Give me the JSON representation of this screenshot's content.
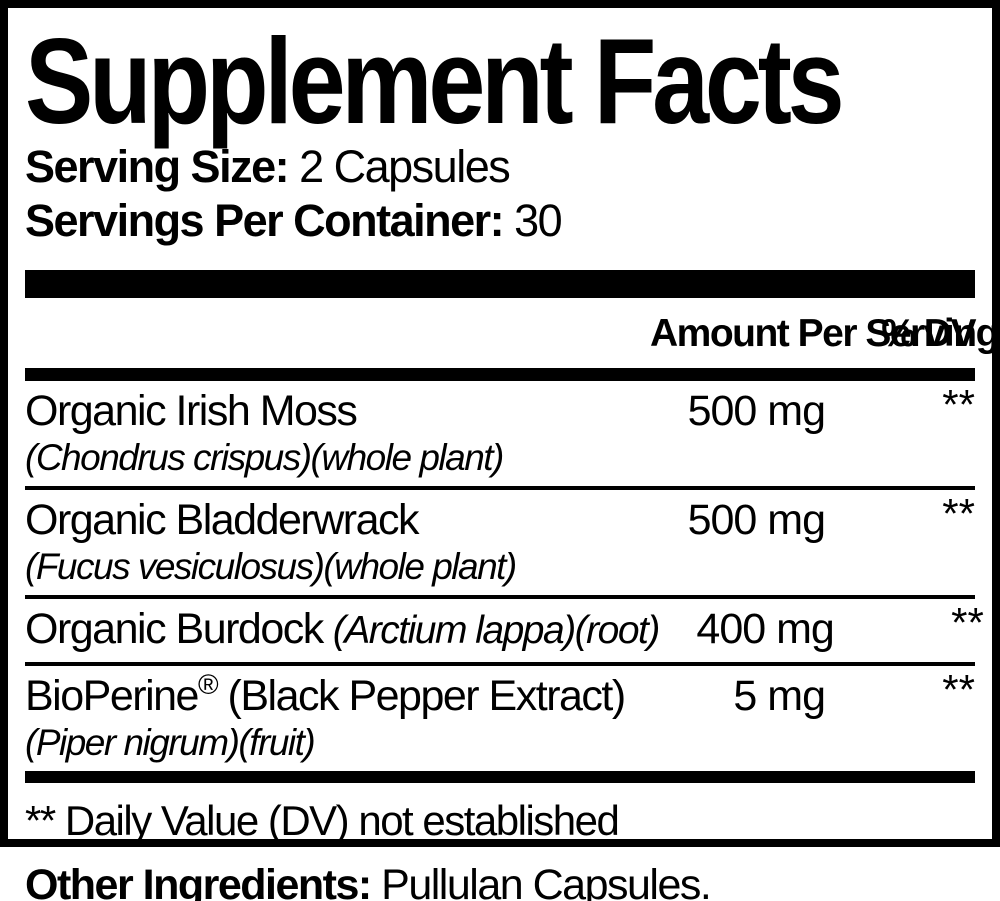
{
  "label": {
    "title": "Supplement Facts",
    "serving_size_label": "Serving Size:",
    "serving_size_value": " 2 Capsules",
    "servings_per_container_label": "Servings Per Container:",
    "servings_per_container_value": " 30",
    "header": {
      "amount": "Amount Per Serving",
      "dv": "% DV"
    },
    "rows": [
      {
        "name": "Organic Irish Moss",
        "latin": "(Chondrus crispus)(whole plant)",
        "amount": "500 mg",
        "dv": "**"
      },
      {
        "name": "Organic Bladderwrack",
        "latin": "(Fucus vesiculosus)(whole plant)",
        "amount": "500 mg",
        "dv": "**"
      },
      {
        "name": "Organic Burdock",
        "latin_inline": "(Arctium lappa)(root)",
        "amount": "400 mg",
        "dv": "**"
      },
      {
        "name": "BioPerine",
        "trademark": "®",
        "name_suffix": " (Black Pepper Extract)",
        "latin": "(Piper nigrum)(fruit)",
        "amount": "5 mg",
        "dv": "**"
      }
    ],
    "footnote": "** Daily Value (DV) not established",
    "other_ingredients_label": "Other Ingredients:",
    "other_ingredients_value": " Pullulan Capsules.",
    "colors": {
      "ink": "#000000",
      "background": "#ffffff"
    }
  }
}
